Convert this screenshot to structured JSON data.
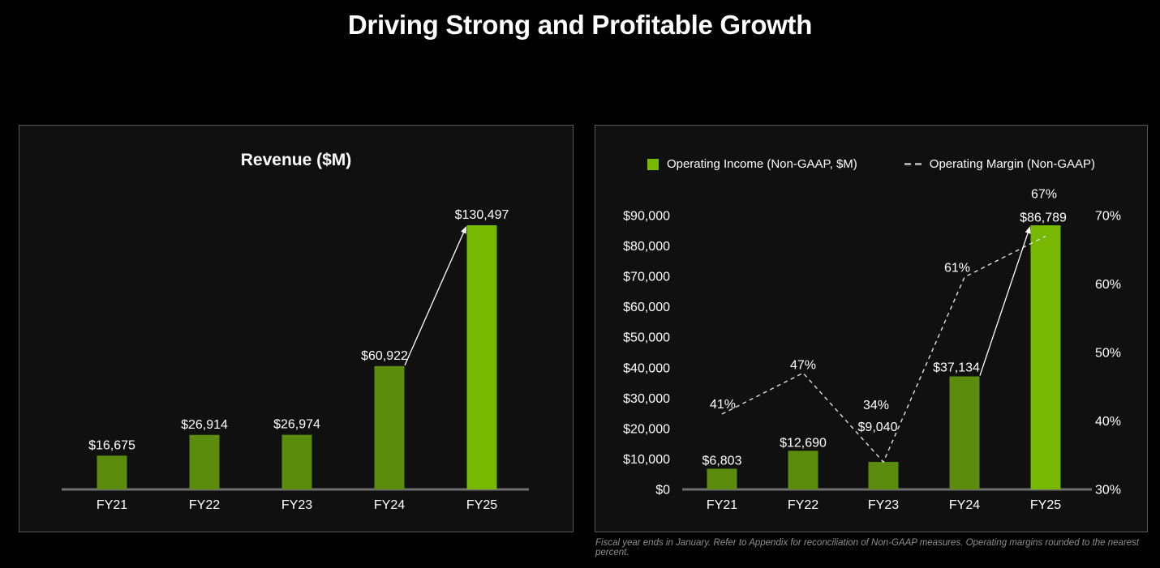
{
  "page": {
    "title": "Driving Strong and Profitable Growth"
  },
  "colors": {
    "background": "#000000",
    "panel_background": "#0f100f",
    "panel_border": "#595959",
    "bright_green": "#76b900",
    "dark_green": "#5b8c0d",
    "axis_line": "#6f6f6f",
    "text_white": "#ffffff",
    "dashed_line": "#e0e0e0",
    "footnote_gray": "#8f8f8f"
  },
  "footnote": "Fiscal year ends in January. Refer to Appendix for reconciliation of Non-GAAP measures. Operating margins rounded to the nearest percent.",
  "chart_data": [
    {
      "type": "bar",
      "title": "Revenue ($M)",
      "categories": [
        "FY21",
        "FY22",
        "FY23",
        "FY24",
        "FY25"
      ],
      "values": [
        16675,
        26914,
        26974,
        60922,
        130497
      ],
      "value_labels": [
        "$16,675",
        "$26,914",
        "$26,974",
        "$60,922",
        "$130,497"
      ],
      "ylim": [
        0,
        130497
      ],
      "grid": false,
      "highlight_index": 4,
      "annotation": "white arrow from FY24 bar top to FY25 bar top"
    },
    {
      "type": "bar+line",
      "categories": [
        "FY21",
        "FY22",
        "FY23",
        "FY24",
        "FY25"
      ],
      "series": [
        {
          "name": "Operating Income (Non-GAAP, $M)",
          "type": "bar",
          "values": [
            6803,
            12690,
            9040,
            37134,
            86789
          ],
          "value_labels": [
            "$6,803",
            "$12,690",
            "$9,040",
            "$37,134",
            "$86,789"
          ]
        },
        {
          "name": "Operating Margin (Non-GAAP)",
          "type": "dashed-line",
          "values": [
            41,
            47,
            34,
            61,
            67
          ],
          "value_labels": [
            "41%",
            "47%",
            "34%",
            "61%",
            "67%"
          ]
        }
      ],
      "left_axis_ticks": [
        "$90,000",
        "$80,000",
        "$70,000",
        "$60,000",
        "$50,000",
        "$40,000",
        "$30,000",
        "$20,000",
        "$10,000",
        "$0"
      ],
      "left_ylim": [
        0,
        90000
      ],
      "right_axis_ticks": [
        "70%",
        "60%",
        "50%",
        "40%",
        "30%"
      ],
      "right_ylim": [
        30,
        70
      ],
      "grid": false,
      "highlight_index": 4,
      "legend_position": "top-center",
      "annotation": "white arrow from FY24 bar top to FY25 bar top"
    }
  ]
}
